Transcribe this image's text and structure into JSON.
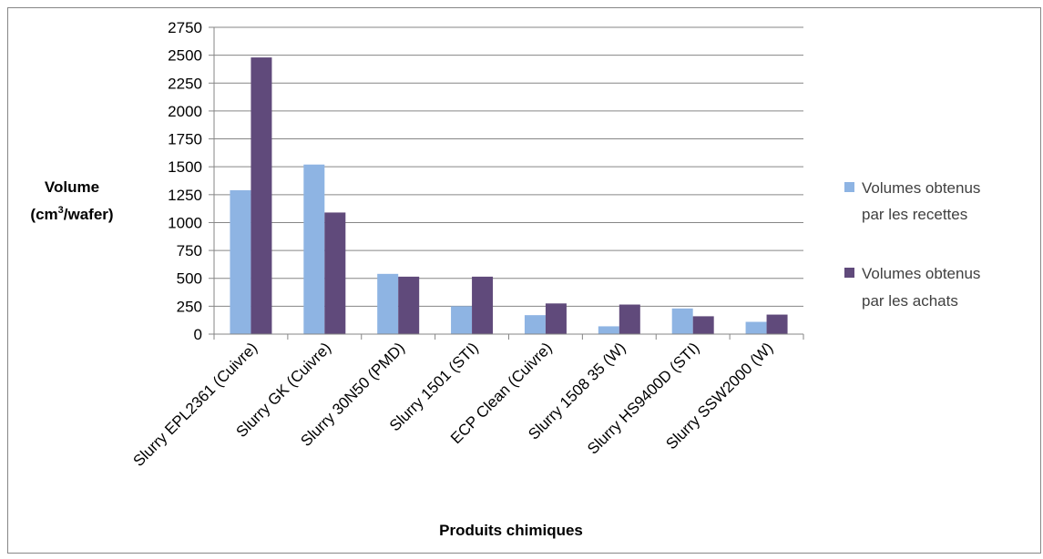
{
  "chart_data": {
    "type": "bar",
    "title": "",
    "xlabel": "Produits chimiques",
    "ylabel": {
      "line1": "Volume",
      "line2_prefix": "(cm",
      "line2_sup": "3",
      "line2_suffix": "/wafer)"
    },
    "ylim": [
      0,
      2750
    ],
    "yticks": [
      0,
      250,
      500,
      750,
      1000,
      1250,
      1500,
      1750,
      2000,
      2250,
      2500,
      2750
    ],
    "grid": true,
    "legend_position": "right",
    "categories": [
      "Slurry EPL2361 (Cuivre)",
      "Slurry GK (Cuivre)",
      "Slurry 30N50 (PMD)",
      "Slurry 1501 (STI)",
      "ECP Clean (Cuivre)",
      "Slurry 1508 35 (W)",
      "Slurry HS9400D (STI)",
      "Slurry SSW2000 (W)"
    ],
    "series": [
      {
        "name_lines": [
          "Volumes obtenus",
          "par les recettes"
        ],
        "color": "#8eb4e3",
        "values": [
          1290,
          1520,
          540,
          250,
          170,
          70,
          230,
          110
        ]
      },
      {
        "name_lines": [
          "Volumes obtenus",
          "par les achats"
        ],
        "color": "#604a7b",
        "values": [
          2480,
          1090,
          515,
          515,
          275,
          265,
          160,
          175
        ]
      }
    ]
  }
}
